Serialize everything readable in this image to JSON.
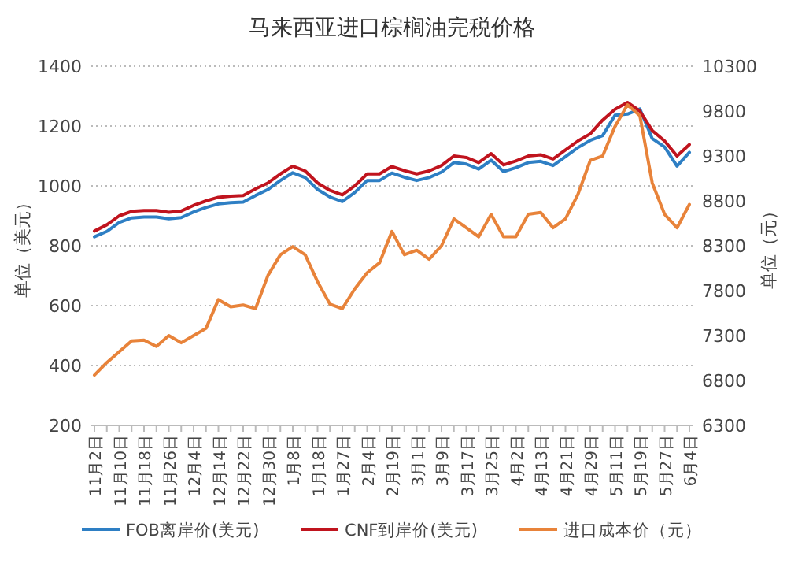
{
  "chart_data": {
    "type": "line",
    "title": "马来西亚进口棕榈油完税价格",
    "ylabel": "单位（美元）",
    "y2label": "单位（元）",
    "categories": [
      "11月2日",
      null,
      "11月10日",
      null,
      "11月18日",
      null,
      "11月26日",
      null,
      "12月4日",
      null,
      "12月14日",
      null,
      "12月22日",
      null,
      "12月30日",
      null,
      "1月8日",
      null,
      "1月18日",
      null,
      "1月27日",
      null,
      "2月4日",
      null,
      "2月19日",
      null,
      "3月1日",
      null,
      "3月9日",
      null,
      "3月17日",
      null,
      "3月25日",
      null,
      "4月2日",
      null,
      "4月13日",
      null,
      "4月21日",
      null,
      "4月29日",
      null,
      "5月11日",
      null,
      "5月19日",
      null,
      "5月27日",
      null,
      "6月4日"
    ],
    "ylim": [
      200,
      1400
    ],
    "yticks": [
      200,
      400,
      600,
      800,
      1000,
      1200,
      1400
    ],
    "y2lim": [
      6300,
      10300
    ],
    "y2ticks": [
      6300,
      6800,
      7300,
      7800,
      8300,
      8800,
      9300,
      9800,
      10300
    ],
    "grid": "y",
    "legend": "bottom",
    "marker": "none",
    "line_style": "solid",
    "series": [
      {
        "name": "FOB离岸价(美元)",
        "color": "#2e7fc4",
        "values": [
          830,
          848,
          878,
          893,
          896,
          896,
          890,
          894,
          913,
          928,
          940,
          944,
          946,
          968,
          988,
          1018,
          1044,
          1028,
          988,
          963,
          948,
          978,
          1018,
          1018,
          1043,
          1029,
          1018,
          1028,
          1046,
          1078,
          1073,
          1056,
          1086,
          1048,
          1061,
          1078,
          1082,
          1068,
          1098,
          1128,
          1152,
          1168,
          1236,
          1240,
          1257,
          1158,
          1130,
          1066,
          1112
        ]
      },
      {
        "name": "CNF到岸价(美元)",
        "color": "#c0141e",
        "values": [
          849,
          870,
          900,
          915,
          918,
          918,
          912,
          916,
          935,
          950,
          962,
          966,
          968,
          990,
          1010,
          1040,
          1066,
          1050,
          1010,
          985,
          970,
          1000,
          1040,
          1040,
          1065,
          1051,
          1040,
          1050,
          1068,
          1100,
          1095,
          1078,
          1108,
          1070,
          1083,
          1100,
          1104,
          1090,
          1120,
          1150,
          1174,
          1220,
          1256,
          1279,
          1250,
          1185,
          1150,
          1100,
          1138
        ]
      },
      {
        "name": "进口成本价（元）",
        "color": "#e8833a",
        "axis": "y2",
        "values": [
          6860,
          7000,
          7120,
          7240,
          7250,
          7180,
          7300,
          7220,
          7300,
          7380,
          7700,
          7620,
          7640,
          7600,
          7970,
          8200,
          8290,
          8200,
          7900,
          7650,
          7600,
          7820,
          8000,
          8110,
          8460,
          8200,
          8250,
          8150,
          8300,
          8600,
          8500,
          8400,
          8650,
          8400,
          8400,
          8650,
          8670,
          8500,
          8600,
          8870,
          9250,
          9300,
          9630,
          9870,
          9750,
          9000,
          8650,
          8500,
          8760
        ]
      }
    ]
  }
}
